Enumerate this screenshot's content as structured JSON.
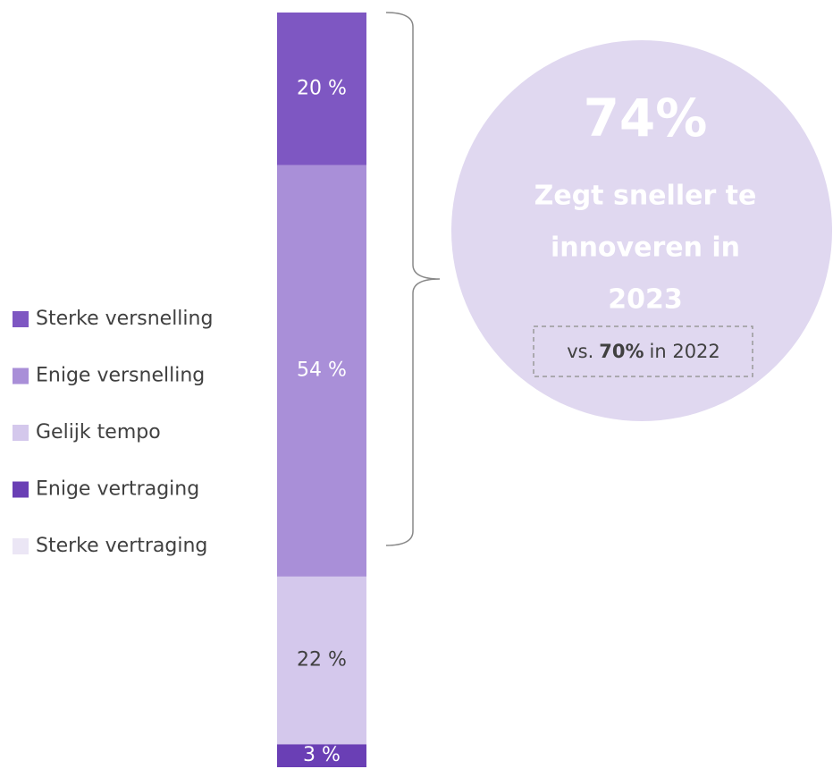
{
  "chart_data": {
    "type": "stacked-bar",
    "series": [
      {
        "name": "Sterke versnelling",
        "color": "#7e57c2",
        "values": [
          20
        ],
        "value_labels": [
          "20 %"
        ]
      },
      {
        "name": "Enige versnelling",
        "color": "#a98fd8",
        "values": [
          54
        ],
        "value_labels": [
          "54 %"
        ]
      },
      {
        "name": "Gelijk tempo",
        "color": "#d4c8ec",
        "values": [
          22
        ],
        "value_labels": [
          "22 %"
        ]
      },
      {
        "name": "Enige vertraging",
        "color": "#6a3fb5",
        "values": [
          3
        ],
        "value_labels": [
          "3 %"
        ]
      },
      {
        "name": "Sterke vertraging",
        "color": "#ebe6f5",
        "values": [
          0
        ]
      }
    ],
    "annotation": {
      "headline": "74%",
      "lines": [
        "Zegt sneller te",
        "innoveren in",
        "2023"
      ],
      "comparison": {
        "prefix": "vs.",
        "value": "70%",
        "suffix": "in 2022"
      },
      "color": "#e0d8f0"
    }
  }
}
